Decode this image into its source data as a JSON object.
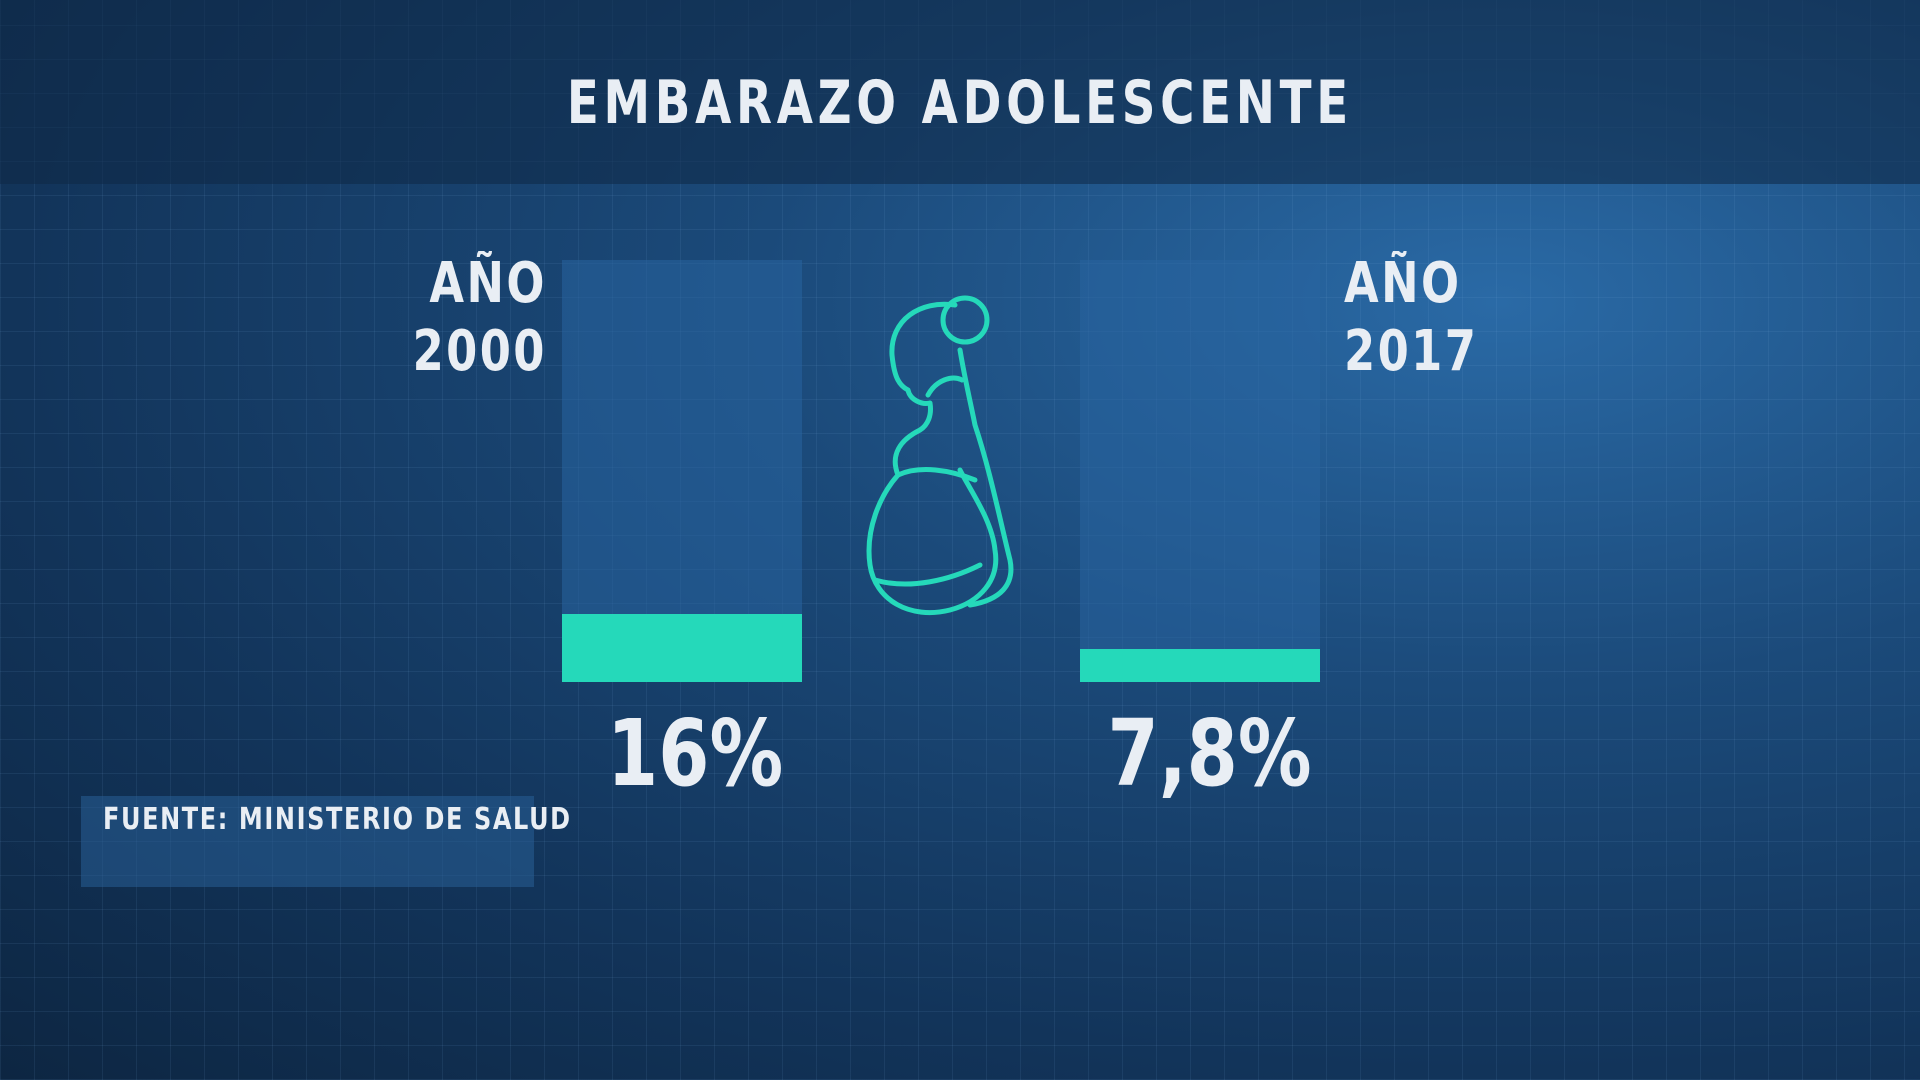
{
  "chart_data": {
    "type": "bar",
    "title": "EMBARAZO ADOLESCENTE",
    "categories": [
      "AÑO\n2000",
      "AÑO\n2017"
    ],
    "values": [
      16,
      7.8
    ],
    "value_labels": [
      "16%",
      "7,8%"
    ],
    "color": "#25d9ba",
    "ylim": [
      0,
      100
    ],
    "source": "FUENTE: MINISTERIO DE SALUD"
  }
}
